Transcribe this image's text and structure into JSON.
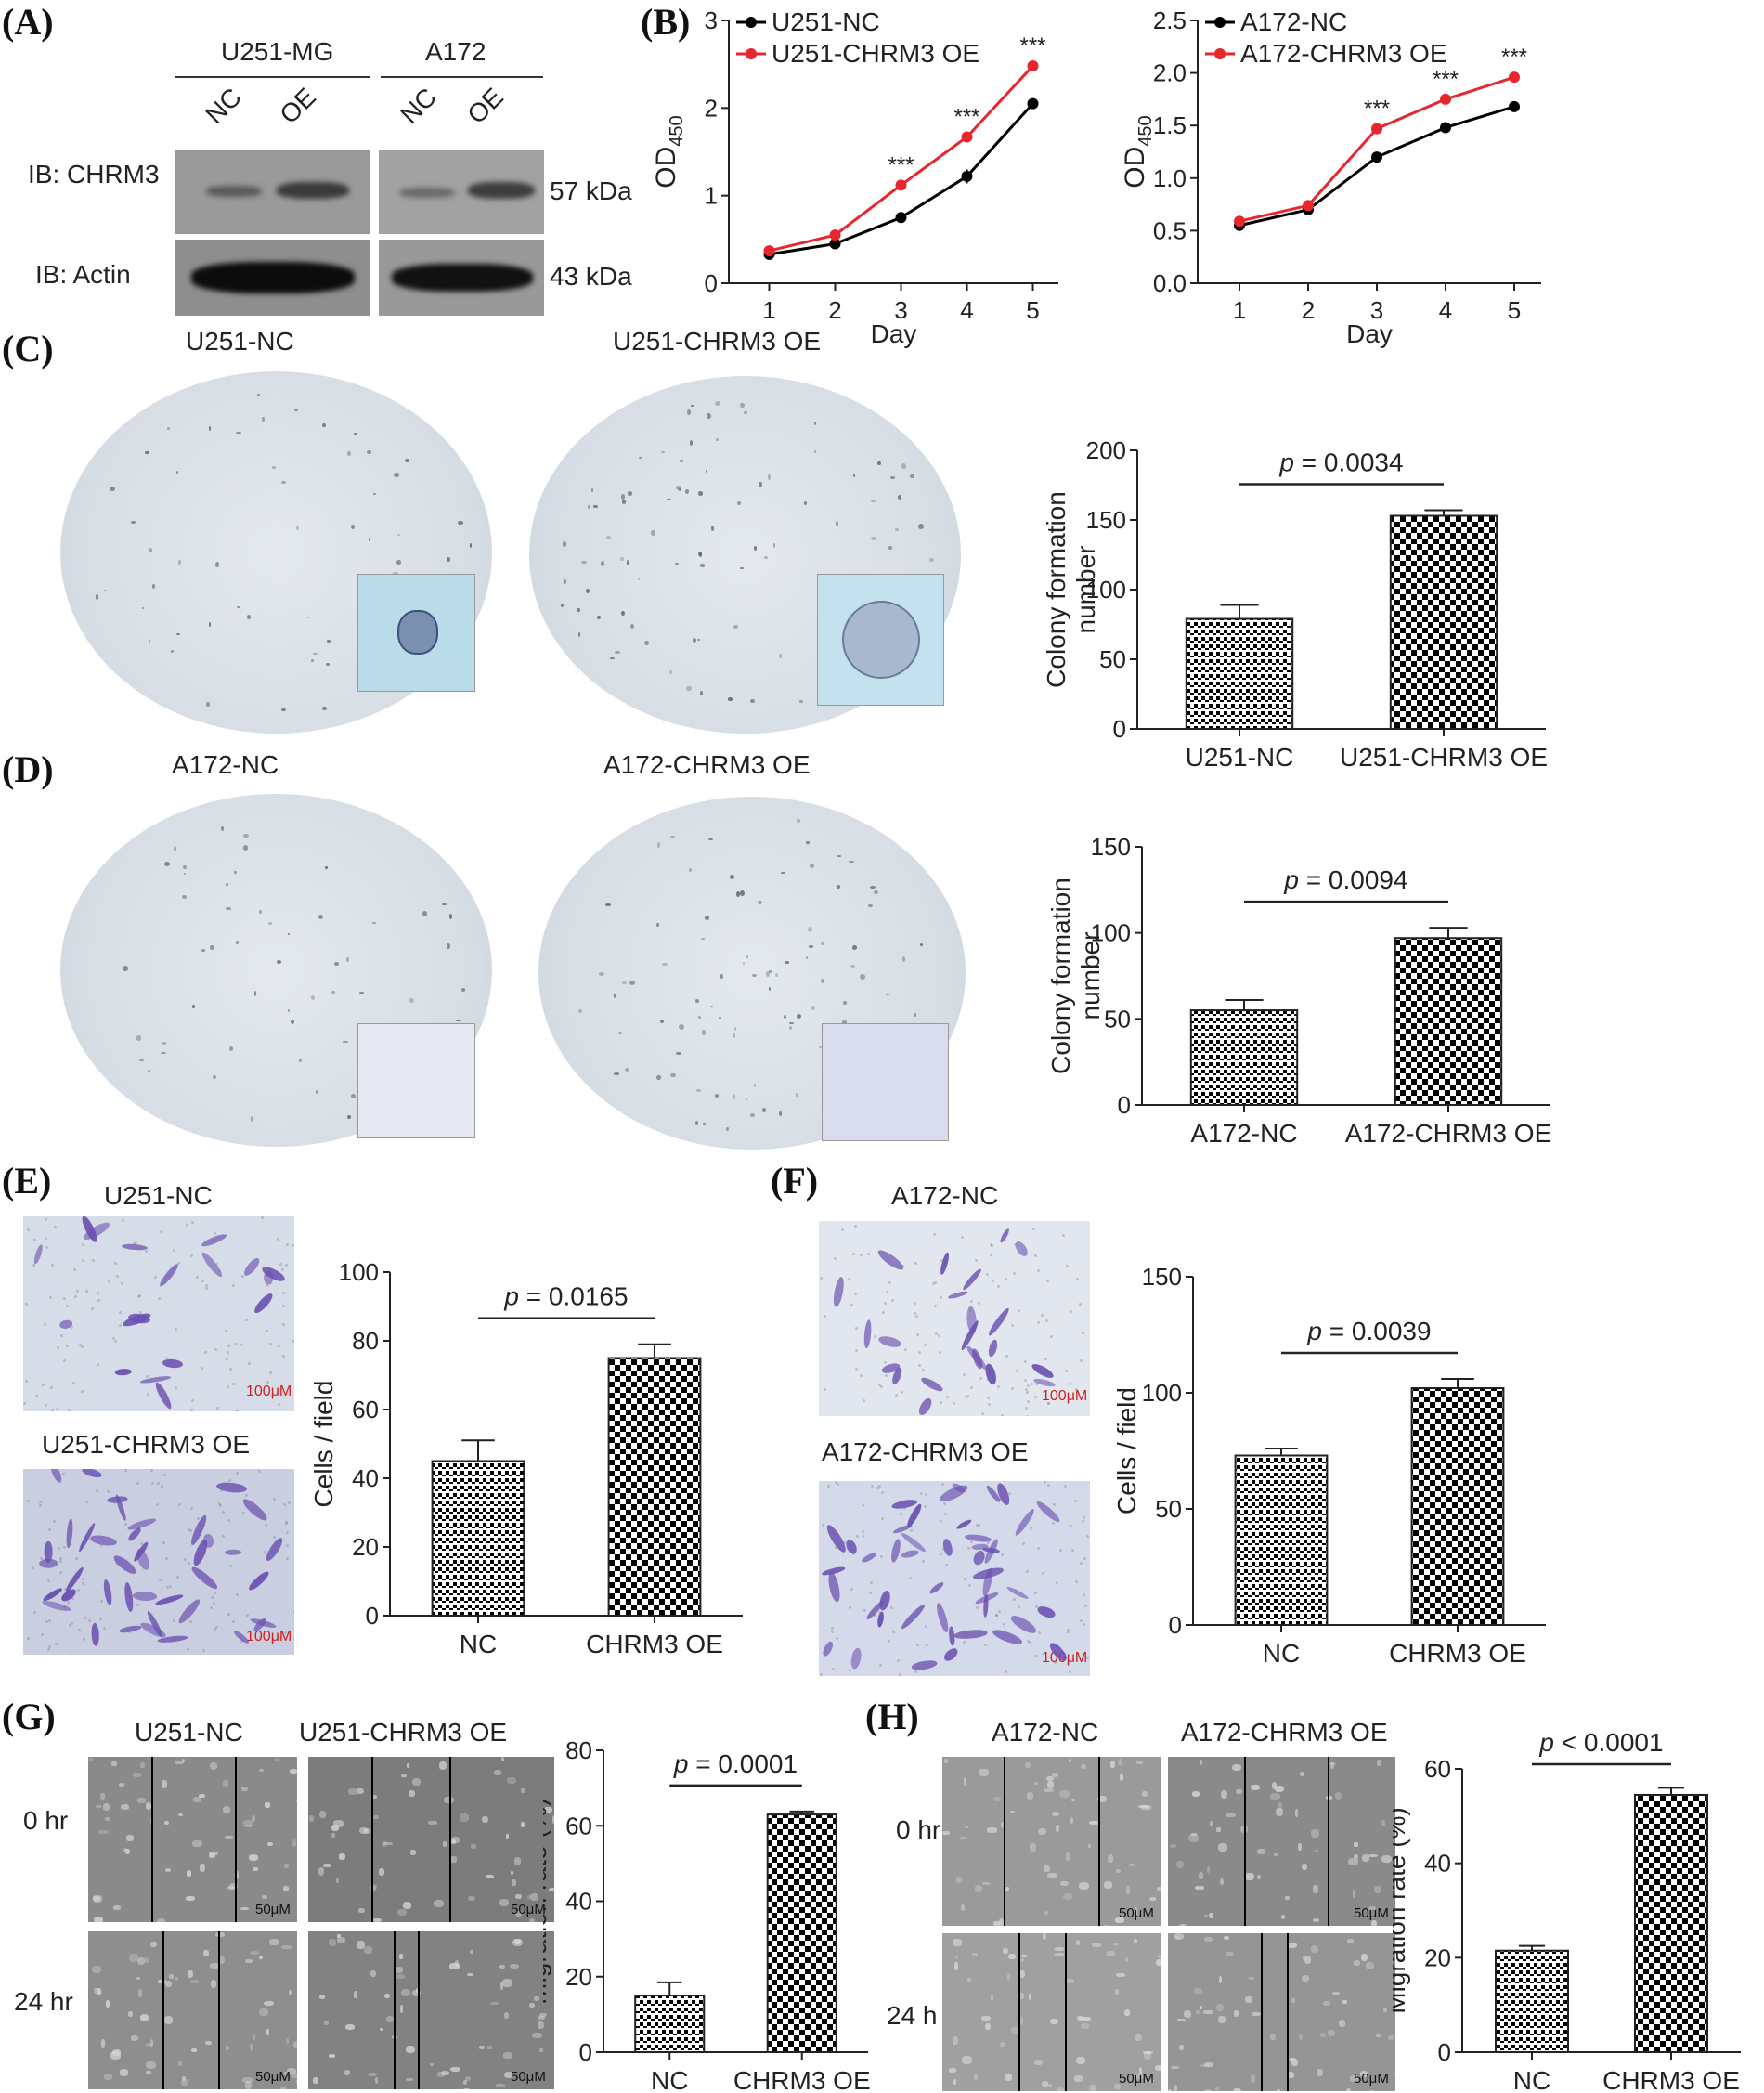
{
  "panels": {
    "A": "(A)",
    "B": "(B)",
    "C": "(C)",
    "D": "(D)",
    "E": "(E)",
    "F": "(F)",
    "G": "(G)",
    "H": "(H)"
  },
  "panel_a": {
    "cell_lines": [
      "U251-MG",
      "A172"
    ],
    "lanes": [
      "NC",
      "OE",
      "NC",
      "OE"
    ],
    "rows": [
      {
        "label": "IB: CHRM3",
        "size": "57 kDa"
      },
      {
        "label": "IB: Actin",
        "size": "43 kDa"
      }
    ]
  },
  "panel_c": {
    "images": [
      "U251-NC",
      "U251-CHRM3 OE"
    ]
  },
  "panel_d": {
    "images": [
      "A172-NC",
      "A172-CHRM3 OE"
    ]
  },
  "panel_e": {
    "images": [
      "U251-NC",
      "U251-CHRM3 OE"
    ],
    "scale": "100μM"
  },
  "panel_f": {
    "images": [
      "A172-NC",
      "A172-CHRM3 OE"
    ],
    "scale": "100μM"
  },
  "panel_g": {
    "columns": [
      "U251-NC",
      "U251-CHRM3 OE"
    ],
    "rows": [
      "0 hr",
      "24 hr"
    ],
    "scale": "50μM"
  },
  "panel_h": {
    "columns": [
      "A172-NC",
      "A172-CHRM3 OE"
    ],
    "rows": [
      "0 hr",
      "24 h"
    ],
    "scale": "50μM"
  },
  "colors": {
    "nc": "#000000",
    "oe": "#e8262d"
  },
  "chart_data": [
    {
      "id": "B1",
      "type": "line",
      "xlabel": "Day",
      "ylabel": "OD",
      "ylabel_sub": "450",
      "x": [
        1,
        2,
        3,
        4,
        5
      ],
      "ylim": [
        0,
        3
      ],
      "yticks": [
        0,
        1,
        2,
        3
      ],
      "series": [
        {
          "name": "U251-NC",
          "color": "#000000",
          "values": [
            0.33,
            0.45,
            0.75,
            1.22,
            2.05
          ],
          "err": [
            0.02,
            0.02,
            0.03,
            0.08,
            0.03
          ]
        },
        {
          "name": "U251-CHRM3 OE",
          "color": "#e8262d",
          "values": [
            0.37,
            0.55,
            1.12,
            1.67,
            2.48
          ],
          "err": [
            0.02,
            0.02,
            0.03,
            0.06,
            0.03
          ]
        }
      ],
      "annotations": [
        {
          "x": 3,
          "text": "***"
        },
        {
          "x": 4,
          "text": "***"
        },
        {
          "x": 5,
          "text": "***"
        }
      ]
    },
    {
      "id": "B2",
      "type": "line",
      "xlabel": "Day",
      "ylabel": "OD",
      "ylabel_sub": "450",
      "x": [
        1,
        2,
        3,
        4,
        5
      ],
      "ylim": [
        0,
        2.5
      ],
      "yticks": [
        0.0,
        0.5,
        1.0,
        1.5,
        2.0,
        2.5
      ],
      "series": [
        {
          "name": "A172-NC",
          "color": "#000000",
          "values": [
            0.55,
            0.7,
            1.2,
            1.48,
            1.68
          ],
          "err": [
            0.02,
            0.02,
            0.02,
            0.02,
            0.02
          ]
        },
        {
          "name": "A172-CHRM3 OE",
          "color": "#e8262d",
          "values": [
            0.59,
            0.74,
            1.47,
            1.75,
            1.96
          ],
          "err": [
            0.02,
            0.02,
            0.03,
            0.02,
            0.02
          ]
        }
      ],
      "annotations": [
        {
          "x": 3,
          "text": "***"
        },
        {
          "x": 4,
          "text": "***"
        },
        {
          "x": 5,
          "text": "***"
        }
      ]
    },
    {
      "id": "C",
      "type": "bar",
      "categories": [
        "U251-NC",
        "U251-CHRM3 OE"
      ],
      "values": [
        79,
        153
      ],
      "err": [
        10,
        4
      ],
      "ylabel": "Colony formation number",
      "ylim": [
        0,
        200
      ],
      "yticks": [
        0,
        50,
        100,
        150,
        200
      ],
      "pvalue": "p = 0.0034"
    },
    {
      "id": "D",
      "type": "bar",
      "categories": [
        "A172-NC",
        "A172-CHRM3 OE"
      ],
      "values": [
        55,
        97
      ],
      "err": [
        6,
        6
      ],
      "ylabel": "Colony formation number",
      "ylim": [
        0,
        150
      ],
      "yticks": [
        0,
        50,
        100,
        150
      ],
      "pvalue": "p = 0.0094"
    },
    {
      "id": "E",
      "type": "bar",
      "categories": [
        "NC",
        "CHRM3 OE"
      ],
      "values": [
        45,
        75
      ],
      "err": [
        6,
        4
      ],
      "ylabel": "Cells / field",
      "ylim": [
        0,
        100
      ],
      "yticks": [
        0,
        20,
        40,
        60,
        80,
        100
      ],
      "pvalue": "p = 0.0165"
    },
    {
      "id": "F",
      "type": "bar",
      "categories": [
        "NC",
        "CHRM3 OE"
      ],
      "values": [
        73,
        102
      ],
      "err": [
        3,
        4
      ],
      "ylabel": "Cells / field",
      "ylim": [
        0,
        150
      ],
      "yticks": [
        0,
        50,
        100,
        150
      ],
      "pvalue": "p = 0.0039"
    },
    {
      "id": "G",
      "type": "bar",
      "categories": [
        "NC",
        "CHRM3 OE"
      ],
      "values": [
        15,
        63
      ],
      "err": [
        3.5,
        0.8
      ],
      "ylabel": "Migration rate (%)",
      "ylim": [
        0,
        80
      ],
      "yticks": [
        0,
        20,
        40,
        60,
        80
      ],
      "pvalue": "p = 0.0001"
    },
    {
      "id": "H",
      "type": "bar",
      "categories": [
        "NC",
        "CHRM3 OE"
      ],
      "values": [
        21.5,
        54.5
      ],
      "err": [
        1,
        1.5
      ],
      "ylabel": "Migration rate (%)",
      "ylim": [
        0,
        60
      ],
      "yticks": [
        0,
        20,
        40,
        60
      ],
      "pvalue": "p < 0.0001"
    }
  ]
}
